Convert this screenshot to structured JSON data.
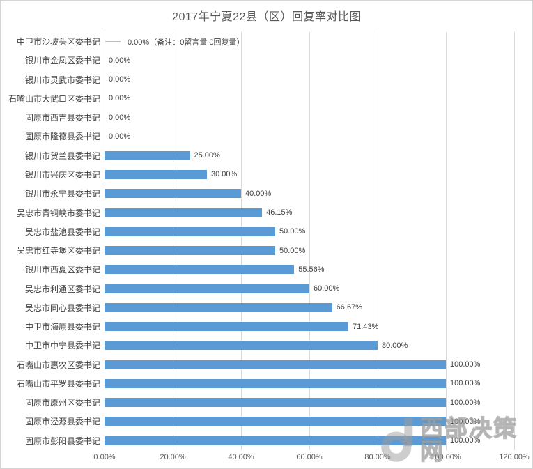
{
  "chart_data": {
    "type": "bar",
    "orientation": "horizontal",
    "title": "2017年宁夏22县（区）回复率对比图",
    "categories": [
      "中卫市沙坡头区委书记",
      "银川市金凤区委书记",
      "银川市灵武市委书记",
      "石嘴山市大武口区委书记",
      "固原市西吉县委书记",
      "固原市隆德县委书记",
      "银川市贺兰县委书记",
      "银川市兴庆区委书记",
      "银川市永宁县委书记",
      "吴忠市青铜峡市委书记",
      "吴忠市盐池县委书记",
      "吴忠市红寺堡区委书记",
      "银川市西夏区委书记",
      "吴忠市利通区委书记",
      "吴忠市同心县委书记",
      "中卫市海原县委书记",
      "中卫市中宁县委书记",
      "石嘴山市惠农区委书记",
      "石嘴山市平罗县委书记",
      "固原市原州区委书记",
      "固原市泾源县委书记",
      "固原市彭阳县委书记"
    ],
    "values": [
      0,
      0,
      0,
      0,
      0,
      0,
      25,
      30,
      40,
      46.15,
      50,
      50,
      55.56,
      60,
      66.67,
      71.43,
      80,
      100,
      100,
      100,
      100,
      100
    ],
    "value_labels": [
      "0.00%",
      "0.00%",
      "0.00%",
      "0.00%",
      "0.00%",
      "0.00%",
      "25.00%",
      "30.00%",
      "40.00%",
      "46.15%",
      "50.00%",
      "50.00%",
      "55.56%",
      "60.00%",
      "66.67%",
      "71.43%",
      "80.00%",
      "100.00%",
      "100.00%",
      "100.00%",
      "100.00%",
      "100.00%"
    ],
    "first_bar_note": "（备注：0留言量 0回复量）",
    "note_row_index": 0,
    "x_ticks": [
      "0.00%",
      "20.00%",
      "40.00%",
      "60.00%",
      "80.00%",
      "100.00%",
      "120.00%"
    ],
    "xlabel": "",
    "ylabel": "",
    "xlim": [
      0,
      120
    ],
    "grid": true,
    "legend_position": "none",
    "bar_color": "#5b9bd5",
    "gridline_color": "#d9d9d9",
    "axis_color": "#bfbfbf",
    "label_color": "#404040",
    "tick_color": "#595959",
    "title_color": "#595959"
  },
  "watermark": {
    "text": "西部决策网",
    "logo": "circle-j-logo"
  }
}
